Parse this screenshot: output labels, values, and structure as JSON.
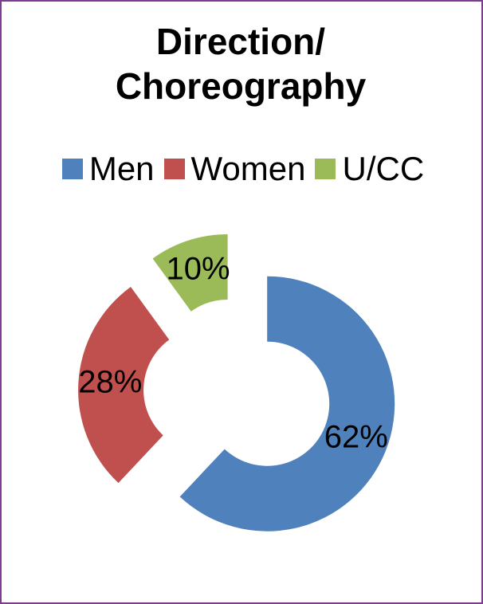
{
  "chart_data": {
    "type": "donut",
    "title": "Direction/ Choreography",
    "categories": [
      "Men",
      "Women",
      "U/CC"
    ],
    "values": [
      62,
      28,
      10
    ],
    "value_labels": [
      "62%",
      "28%",
      "10%"
    ],
    "colors": [
      "#4f81bd",
      "#c0504d",
      "#9bbb59"
    ],
    "legend": "top"
  }
}
